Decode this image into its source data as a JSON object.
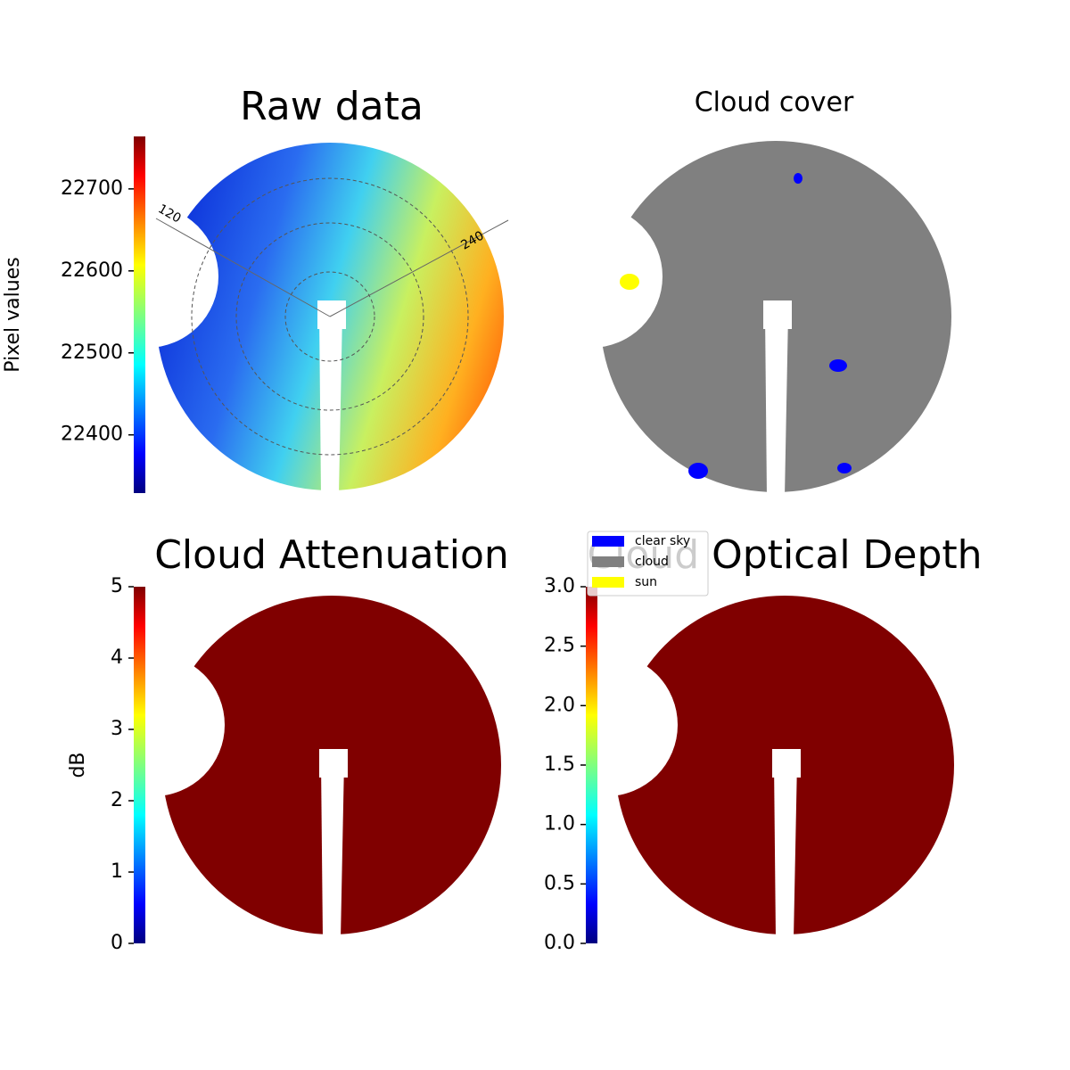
{
  "chart_data": [
    {
      "type": "image",
      "title": "Raw data",
      "ylabel": "Pixel values",
      "colormap": "jet",
      "ylim": [
        22329,
        22764
      ],
      "yticks": [
        22400,
        22500,
        22600,
        22700
      ],
      "annotations": [
        "120",
        "240"
      ]
    },
    {
      "type": "classes",
      "title": "Cloud cover",
      "series": [
        {
          "name": "clear sky",
          "color": "#0000ff"
        },
        {
          "name": "cloud",
          "color": "#808080"
        },
        {
          "name": "sun",
          "color": "#ffff00"
        }
      ]
    },
    {
      "type": "image",
      "title": "Cloud Attenuation",
      "ylabel": "dB",
      "colormap": "jet",
      "ylim": [
        0,
        5
      ],
      "yticks": [
        0,
        1,
        2,
        3,
        4,
        5
      ],
      "fill": "#800000"
    },
    {
      "type": "image",
      "title": "Cloud Optical Depth",
      "colormap": "jet",
      "ylim": [
        0,
        3
      ],
      "yticks": [
        {
          "value": 0,
          "label": "0.0"
        },
        {
          "value": 0.5,
          "label": "0.5"
        },
        {
          "value": 1,
          "label": "1.0"
        },
        {
          "value": 1.5,
          "label": "1.5"
        },
        {
          "value": 2,
          "label": "2.0"
        },
        {
          "value": 2.5,
          "label": "2.5"
        },
        {
          "value": 3,
          "label": "3.0"
        }
      ],
      "fill": "#800000"
    }
  ]
}
